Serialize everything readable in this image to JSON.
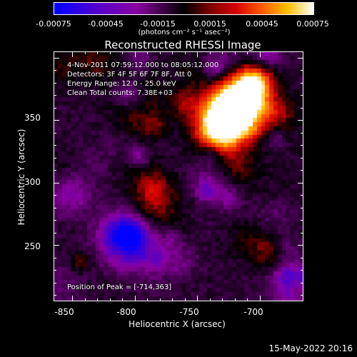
{
  "colorbar": {
    "tick_labels": [
      "-0.00075",
      "-0.00045",
      "-0.00015",
      "0.00015",
      "0.00045",
      "0.00075"
    ],
    "units": "(photons cm⁻² s⁻¹ asec⁻²)",
    "colors": [
      "#0000ff",
      "#8a00a0",
      "#000000",
      "#d40000",
      "#ff5a00",
      "#ffc000",
      "#ffffff"
    ]
  },
  "title": "Reconstructed RHESSI Image",
  "annotations": {
    "time": "4-Nov-2011 07:59:12.000 to 08:05:12.000",
    "detectors": "Detectors: 3F 4F 5F 6F 7F 8F, Att 0",
    "energy": "Energy Range: 12.0 - 25.0 keV",
    "clean": "Clean     Total counts: 7.38E+03",
    "peak": "Position of Peak = [-714,363]"
  },
  "axes": {
    "xlabel": "Heliocentric X (arcsec)",
    "ylabel": "Heliocentric Y (arcsec)",
    "x_ticks": [
      "-850",
      "-800",
      "-750",
      "-700"
    ],
    "y_ticks": [
      "350",
      "300",
      "250"
    ],
    "xlim": [
      -865,
      -665
    ],
    "ylim": [
      205,
      405
    ]
  },
  "peak_position": [
    -714,
    363
  ],
  "datestamp": "15-May-2022 20:16"
}
